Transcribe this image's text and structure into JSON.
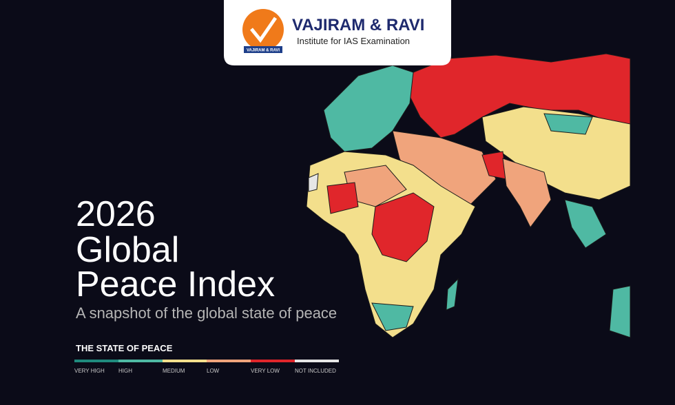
{
  "logo": {
    "badge": "VAJIRAM & RAVI",
    "name": "VAJIRAM & RAVI",
    "tagline": "Institute for IAS Examination"
  },
  "title": {
    "year": "2026",
    "line1": "Global",
    "line2": "Peace Index",
    "subtitle": "A snapshot of the global state of peace"
  },
  "legend": {
    "title": "THE STATE OF PEACE",
    "items": [
      {
        "label": "VERY HIGH",
        "color": "#1f8a7d"
      },
      {
        "label": "HIGH",
        "color": "#4fb9a3"
      },
      {
        "label": "MEDIUM",
        "color": "#f3df8c"
      },
      {
        "label": "LOW",
        "color": "#f0a47c"
      },
      {
        "label": "VERY LOW",
        "color": "#e0262b"
      },
      {
        "label": "NOT INCLUDED",
        "color": "#e6e6e6"
      }
    ]
  }
}
